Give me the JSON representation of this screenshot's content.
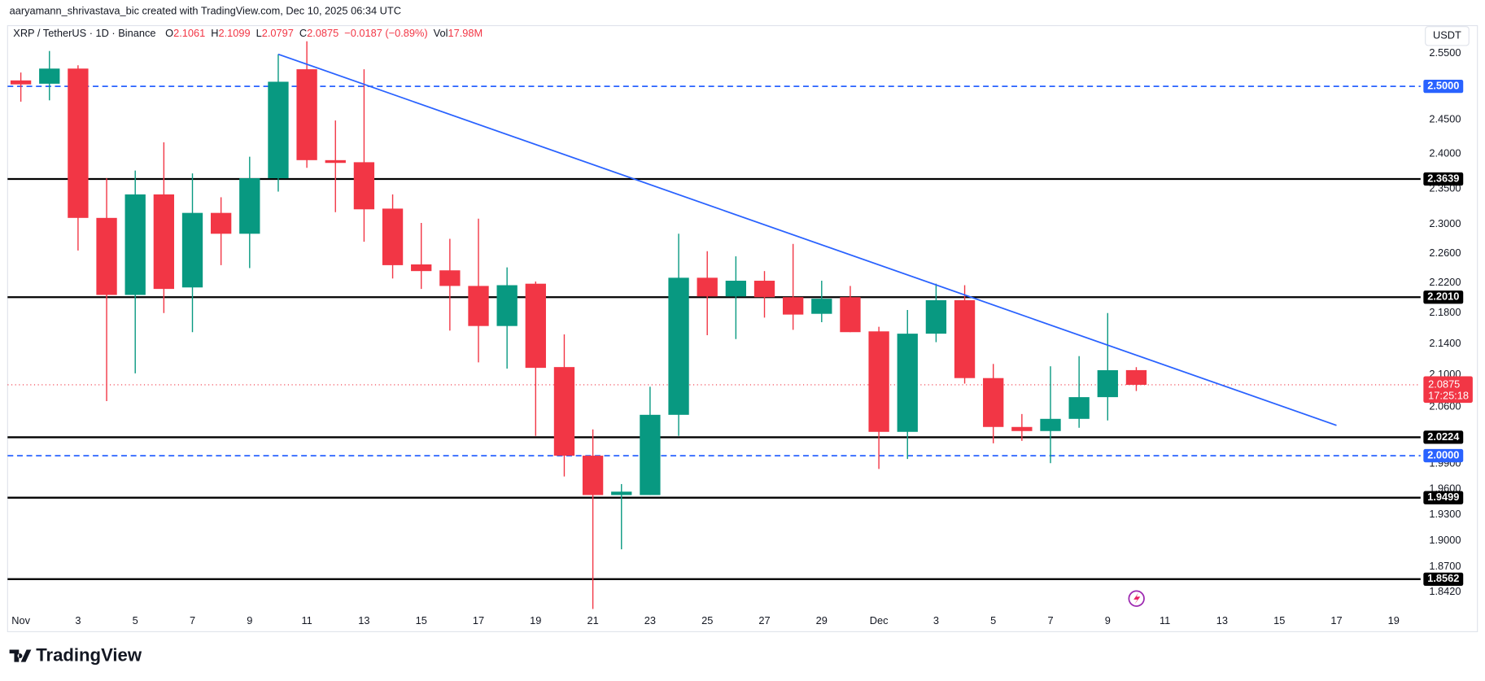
{
  "chart_data": {
    "type": "candlestick",
    "credit": "aaryamann_shrivastava_bic created with TradingView.com, Dec 10, 2025 06:34 UTC",
    "symbol": "XRP / TetherUS · 1D · Binance",
    "ohlc_labels": [
      "O",
      "H",
      "L",
      "C"
    ],
    "change": "−0.0187 (−0.89%)",
    "volume_label": "Vol",
    "volume": "17.98M",
    "currency": "USDT",
    "countdown": "17:25:18",
    "brand": "TradingView",
    "up_color": "#089981",
    "down_color": "#f23645",
    "log_scale": true,
    "grid": false,
    "categories": [
      "Nov",
      null,
      "3",
      null,
      "5",
      null,
      "7",
      null,
      "9",
      null,
      "11",
      null,
      "13",
      null,
      "15",
      null,
      "17",
      null,
      "19",
      null,
      "21",
      null,
      "23",
      null,
      "25",
      null,
      "27",
      null,
      "29",
      null,
      "Dec",
      null,
      "3",
      null,
      "5",
      null,
      "7",
      null,
      "9",
      null,
      "11",
      null,
      "13",
      null,
      "15",
      null,
      "17",
      null,
      "19"
    ],
    "open": [
      2.509,
      2.504,
      2.527,
      2.309,
      2.204,
      2.342,
      2.214,
      2.316,
      2.287,
      2.365,
      2.526,
      2.391,
      2.388,
      2.322,
      2.245,
      2.237,
      2.216,
      2.163,
      2.219,
      2.11,
      2.0,
      1.953,
      1.953,
      2.05,
      2.227,
      2.202,
      2.223,
      2.201,
      2.179,
      2.201,
      2.156,
      2.029,
      2.153,
      2.197,
      2.096,
      2.035,
      2.03,
      2.045,
      2.072,
      2.1061,
      null,
      null,
      null,
      null,
      null,
      null,
      null,
      null,
      null
    ],
    "high": [
      2.521,
      2.554,
      2.532,
      2.365,
      2.376,
      2.417,
      2.372,
      2.338,
      2.396,
      2.549,
      2.569,
      2.449,
      2.526,
      2.342,
      2.302,
      2.28,
      2.308,
      2.241,
      2.222,
      2.152,
      2.032,
      1.966,
      2.085,
      2.287,
      2.263,
      2.256,
      2.236,
      2.273,
      2.223,
      2.216,
      2.162,
      2.184,
      2.219,
      2.217,
      2.114,
      2.051,
      2.111,
      2.124,
      2.18,
      2.1099,
      null,
      null,
      null,
      null,
      null,
      null,
      null,
      null,
      null
    ],
    "low": [
      2.477,
      2.479,
      2.264,
      2.067,
      2.102,
      2.18,
      2.155,
      2.244,
      2.24,
      2.346,
      2.38,
      2.317,
      2.276,
      2.226,
      2.212,
      2.157,
      2.116,
      2.108,
      2.024,
      1.975,
      1.823,
      1.89,
      1.953,
      2.024,
      2.151,
      2.146,
      2.174,
      2.158,
      2.168,
      2.155,
      1.984,
      1.996,
      2.142,
      2.089,
      2.015,
      2.018,
      1.991,
      2.034,
      2.043,
      2.0797,
      null,
      null,
      null,
      null,
      null,
      null,
      null,
      null,
      null
    ],
    "close": [
      2.503,
      2.527,
      2.309,
      2.204,
      2.342,
      2.212,
      2.316,
      2.287,
      2.365,
      2.507,
      2.391,
      2.387,
      2.321,
      2.244,
      2.236,
      2.216,
      2.163,
      2.217,
      2.109,
      2.0,
      1.953,
      1.957,
      2.05,
      2.227,
      2.202,
      2.223,
      2.201,
      2.178,
      2.199,
      2.155,
      2.029,
      2.153,
      2.197,
      2.096,
      2.035,
      2.03,
      2.045,
      2.072,
      2.106,
      2.0875,
      null,
      null,
      null,
      null,
      null,
      null,
      null,
      null,
      null
    ],
    "ylim": [
      1.821,
      2.589
    ],
    "yticks": [
      {
        "value": 2.55,
        "label": "2.5500"
      },
      {
        "value": 2.45,
        "label": "2.4500"
      },
      {
        "value": 2.4,
        "label": "2.4000"
      },
      {
        "value": 2.35,
        "label": "2.3500"
      },
      {
        "value": 2.3,
        "label": "2.3000"
      },
      {
        "value": 2.26,
        "label": "2.2600"
      },
      {
        "value": 2.22,
        "label": "2.2200"
      },
      {
        "value": 2.18,
        "label": "2.1800"
      },
      {
        "value": 2.14,
        "label": "2.1400"
      },
      {
        "value": 2.1,
        "label": "2.1000"
      },
      {
        "value": 2.06,
        "label": "2.0600"
      },
      {
        "value": 1.99,
        "label": "1.9900"
      },
      {
        "value": 1.96,
        "label": "1.9600"
      },
      {
        "value": 1.93,
        "label": "1.9300"
      },
      {
        "value": 1.9,
        "label": "1.9000"
      },
      {
        "value": 1.87,
        "label": "1.8700"
      },
      {
        "value": 1.842,
        "label": "1.8420"
      }
    ],
    "hlines": [
      {
        "value": 2.5,
        "label": "2.5000",
        "color": "#2962ff",
        "style": "dashed"
      },
      {
        "value": 2.3639,
        "label": "2.3639",
        "color": "#000000",
        "style": "solid"
      },
      {
        "value": 2.201,
        "label": "2.2010",
        "color": "#000000",
        "style": "solid"
      },
      {
        "value": 2.0224,
        "label": "2.0224",
        "color": "#000000",
        "style": "solid"
      },
      {
        "value": 2.0,
        "label": "2.0000",
        "color": "#2962ff",
        "style": "dashed"
      },
      {
        "value": 1.9499,
        "label": "1.9499",
        "color": "#000000",
        "style": "solid"
      },
      {
        "value": 1.8562,
        "label": "1.8562",
        "color": "#000000",
        "style": "solid"
      }
    ],
    "trendline": {
      "color": "#2962ff",
      "points": [
        [
          9,
          2.549
        ],
        [
          46,
          2.037
        ]
      ]
    }
  }
}
